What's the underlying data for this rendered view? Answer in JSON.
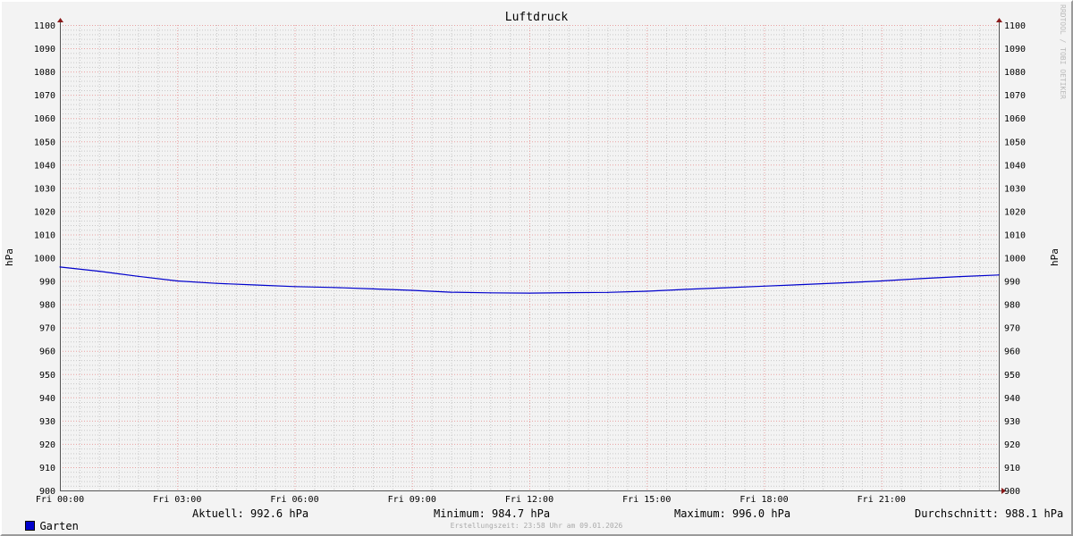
{
  "chart_data": {
    "type": "line",
    "title": "Luftdruck",
    "ylabel": "hPa",
    "ylabel_right": "hPa",
    "ylim": [
      900,
      1100
    ],
    "y_ticks": [
      900,
      910,
      920,
      930,
      940,
      950,
      960,
      970,
      980,
      990,
      1000,
      1010,
      1020,
      1030,
      1040,
      1050,
      1060,
      1070,
      1080,
      1090,
      1100
    ],
    "x_tick_labels": [
      "Fri 00:00",
      "Fri 03:00",
      "Fri 06:00",
      "Fri 09:00",
      "Fri 12:00",
      "Fri 15:00",
      "Fri 18:00",
      "Fri 21:00"
    ],
    "xlim_hours": [
      0,
      24
    ],
    "grid": true,
    "series": [
      {
        "name": "Garten",
        "color": "#0000cc",
        "x_hours": [
          0,
          1,
          2,
          3,
          4,
          5,
          6,
          7,
          8,
          9,
          10,
          11,
          12,
          13,
          14,
          15,
          16,
          17,
          18,
          19,
          20,
          21,
          22,
          23,
          24
        ],
        "values": [
          996.0,
          994.2,
          992.0,
          990.0,
          989.0,
          988.3,
          987.6,
          987.2,
          986.6,
          986.0,
          985.2,
          984.9,
          984.8,
          985.0,
          985.1,
          985.6,
          986.4,
          987.1,
          987.8,
          988.5,
          989.2,
          990.0,
          991.0,
          991.9,
          992.6
        ]
      }
    ],
    "legend": {
      "swatch_color": "#0000cc",
      "series_label": "Garten",
      "current": "Aktuell: 992.6 hPa",
      "minimum": "Minimum: 984.7 hPa",
      "maximum": "Maximum: 996.0 hPa",
      "average": "Durchschnitt: 988.1 hPa"
    },
    "footer": "Erstellungszeit: 23:58 Uhr am 09.01.2026",
    "watermark": "RRDTOOL / TOBI OETIKER"
  }
}
